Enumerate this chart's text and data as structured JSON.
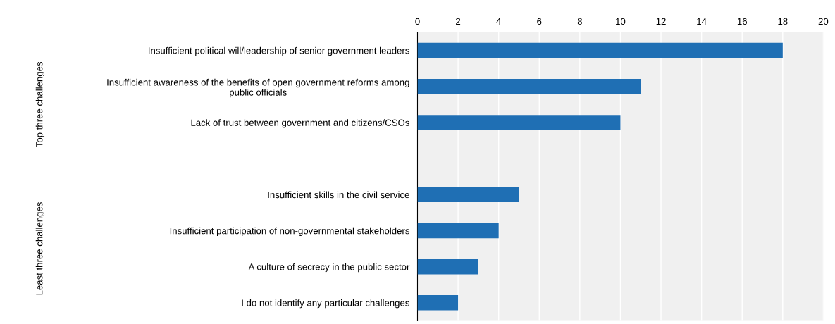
{
  "chart_data": {
    "type": "bar",
    "orientation": "horizontal",
    "categories": [
      "Insufficient political will/leadership of senior government leaders",
      "Insufficient awareness of the benefits of open government reforms among public officials",
      "Lack of trust between government and citizens/CSOs",
      null,
      "Insufficient skills in the civil service",
      "Insufficient participation of non-governmental stakeholders",
      "A culture of secrecy in the public sector",
      "I do not identify any particular challenges"
    ],
    "values": [
      18,
      11,
      10,
      null,
      5,
      4,
      3,
      2
    ],
    "color": "#1f6fb4",
    "xlim": [
      0,
      20
    ],
    "xticks": [
      0,
      2,
      4,
      6,
      8,
      10,
      12,
      14,
      16,
      18,
      20
    ],
    "grid": "x",
    "annotations": [
      "Top three challenges",
      "Least three challenges"
    ]
  }
}
